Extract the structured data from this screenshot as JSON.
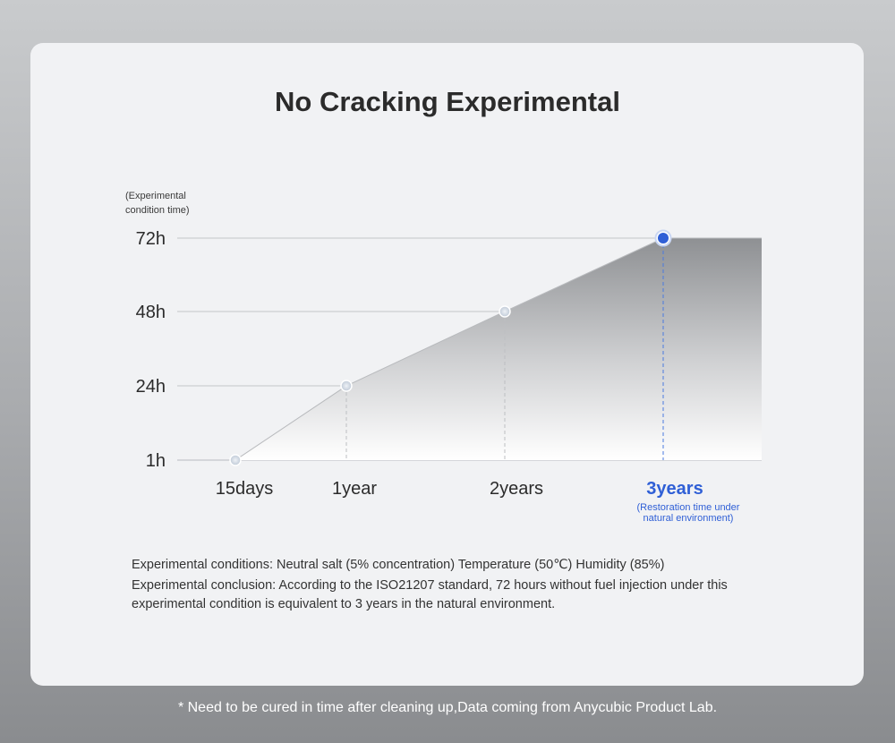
{
  "page": {
    "title": "No Cracking Experimental",
    "conditions": "Experimental conditions: Neutral salt (5% concentration) Temperature (50℃) Humidity (85%)",
    "conclusion": "Experimental conclusion: According to the ISO21207 standard, 72 hours without fuel injection under this experimental condition is equivalent to 3 years in the natural environment.",
    "footer": "*  Need to be cured in time after cleaning up,Data coming from Anycubic Product Lab."
  },
  "chart_data": {
    "type": "area",
    "ylabel_lines": [
      "(Experimental",
      "condition time)"
    ],
    "y_ticks": [
      "72h",
      "48h",
      "24h",
      "1h"
    ],
    "categories": [
      "15days",
      "1year",
      "2years",
      "3years"
    ],
    "values": [
      1,
      24,
      48,
      72
    ],
    "highlight_index": 3,
    "highlight_note": [
      "(Restoration time under",
      "natural environment)"
    ],
    "colors": {
      "highlight": "#2f5fd6",
      "grid": "#c4c6c9",
      "text": "#2b2b2b"
    }
  }
}
